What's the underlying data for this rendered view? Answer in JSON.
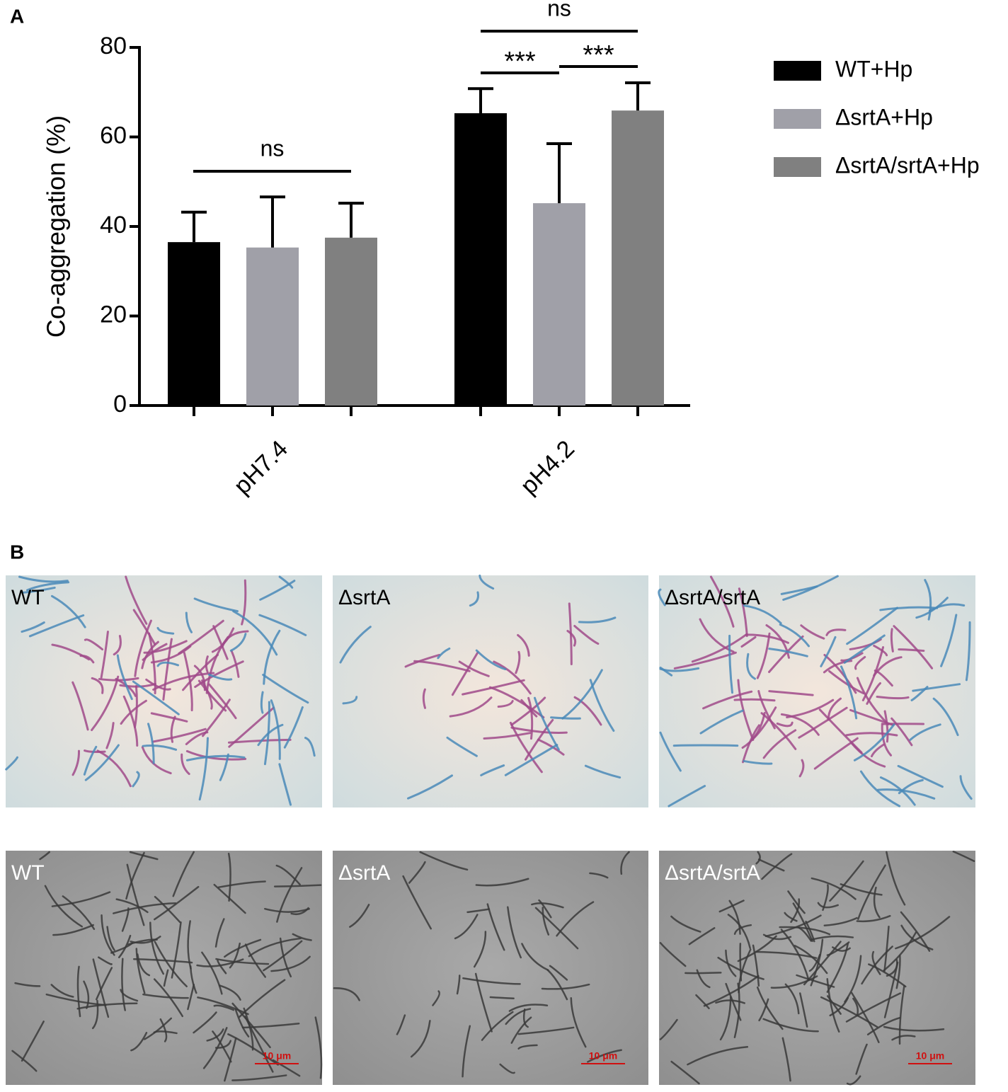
{
  "panel_labels": [
    "A",
    "B"
  ],
  "chart_data": {
    "type": "bar",
    "y_label": "Co-aggregation (%)",
    "categories": [
      "pH7.4",
      "pH4.2"
    ],
    "series": [
      {
        "name": "WT+Hp",
        "color": "#000000",
        "values": [
          36.5,
          65.3
        ],
        "errors": [
          6.7,
          5.5
        ]
      },
      {
        "name": "ΔsrtA+Hp",
        "color": "#a0a0a8",
        "values": [
          35.3,
          45.2
        ],
        "errors": [
          11.3,
          13.3
        ]
      },
      {
        "name": "ΔsrtA/srtA+Hp",
        "color": "#808080",
        "values": [
          37.5,
          65.9
        ],
        "errors": [
          7.7,
          6.2
        ]
      }
    ],
    "ylim": [
      0,
      80
    ],
    "yticks": [
      0,
      20,
      40,
      60,
      80
    ],
    "legend": "right",
    "annotations": [
      "ns",
      "ns",
      "***",
      "***"
    ]
  },
  "micrographs": {
    "stained": [
      "WT",
      "ΔsrtA",
      "ΔsrtA/srtA"
    ],
    "phase": [
      "WT",
      "ΔsrtA",
      "ΔsrtA/srtA"
    ],
    "scale_bar": "10 μm"
  }
}
